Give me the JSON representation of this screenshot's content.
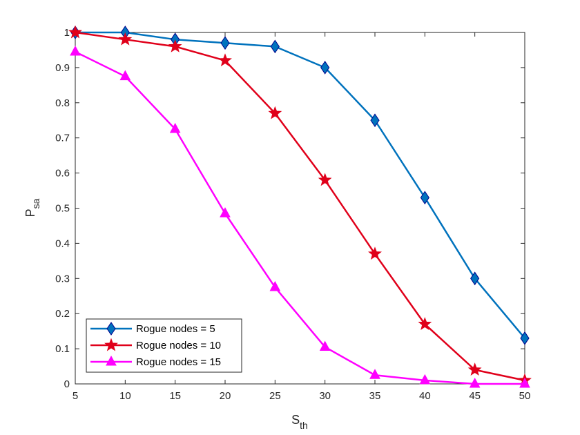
{
  "chart_data": {
    "type": "line",
    "x": [
      5,
      10,
      15,
      20,
      25,
      30,
      35,
      40,
      45,
      50
    ],
    "xlim": [
      5,
      50
    ],
    "ylim": [
      0,
      1
    ],
    "xticks": [
      "5",
      "10",
      "15",
      "20",
      "25",
      "30",
      "35",
      "40",
      "45",
      "50"
    ],
    "yticks": [
      "0",
      "0.1",
      "0.2",
      "0.3",
      "0.4",
      "0.5",
      "0.6",
      "0.7",
      "0.8",
      "0.9",
      "1"
    ],
    "xlabel": {
      "main": "S",
      "sub": "th"
    },
    "ylabel": {
      "main": "P",
      "sub": "sa"
    },
    "grid": false,
    "legend_location": "bottom-left",
    "series": [
      {
        "name": "Rogue nodes = 5",
        "color": "#0072BD",
        "marker": "diamond",
        "values": [
          1.0,
          1.0,
          0.98,
          0.97,
          0.96,
          0.9,
          0.75,
          0.53,
          0.3,
          0.13
        ]
      },
      {
        "name": "Rogue nodes = 10",
        "color": "#E0001A",
        "marker": "star",
        "values": [
          1.0,
          0.98,
          0.96,
          0.92,
          0.77,
          0.58,
          0.37,
          0.17,
          0.04,
          0.01
        ]
      },
      {
        "name": "Rogue nodes = 15",
        "color": "#FF00FF",
        "marker": "triangle",
        "values": [
          0.945,
          0.875,
          0.725,
          0.485,
          0.275,
          0.105,
          0.025,
          0.01,
          0.0,
          0.0
        ]
      }
    ]
  }
}
